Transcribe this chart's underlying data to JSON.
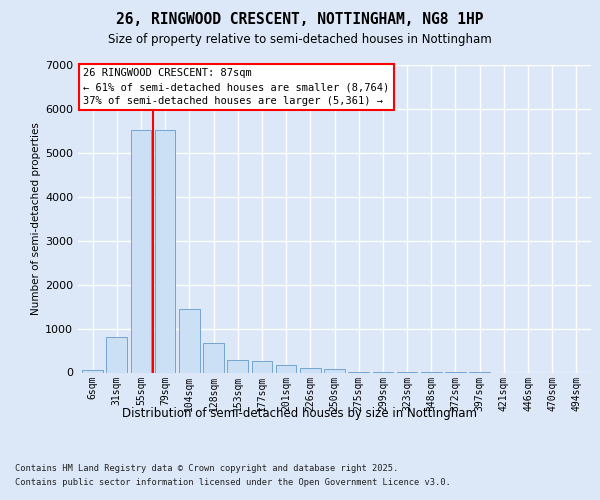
{
  "title": "26, RINGWOOD CRESCENT, NOTTINGHAM, NG8 1HP",
  "subtitle": "Size of property relative to semi-detached houses in Nottingham",
  "xlabel": "Distribution of semi-detached houses by size in Nottingham",
  "ylabel": "Number of semi-detached properties",
  "categories": [
    "6sqm",
    "31sqm",
    "55sqm",
    "79sqm",
    "104sqm",
    "128sqm",
    "153sqm",
    "177sqm",
    "201sqm",
    "226sqm",
    "250sqm",
    "275sqm",
    "299sqm",
    "323sqm",
    "348sqm",
    "372sqm",
    "397sqm",
    "421sqm",
    "446sqm",
    "470sqm",
    "494sqm"
  ],
  "values": [
    50,
    800,
    5530,
    5530,
    1450,
    670,
    290,
    265,
    170,
    110,
    75,
    20,
    7,
    3,
    2,
    1,
    1,
    0,
    0,
    0,
    0
  ],
  "bar_color": "#cce0f5",
  "bar_edge_color": "#6699cc",
  "red_line_between": [
    2,
    3
  ],
  "annotation_title": "26 RINGWOOD CRESCENT: 87sqm",
  "annotation_line1": "← 61% of semi-detached houses are smaller (8,764)",
  "annotation_line2": "37% of semi-detached houses are larger (5,361) →",
  "ylim": [
    0,
    7000
  ],
  "yticks": [
    0,
    1000,
    2000,
    3000,
    4000,
    5000,
    6000,
    7000
  ],
  "background_color": "#dce8f8",
  "grid_color": "#ffffff",
  "footnote1": "Contains HM Land Registry data © Crown copyright and database right 2025.",
  "footnote2": "Contains public sector information licensed under the Open Government Licence v3.0."
}
